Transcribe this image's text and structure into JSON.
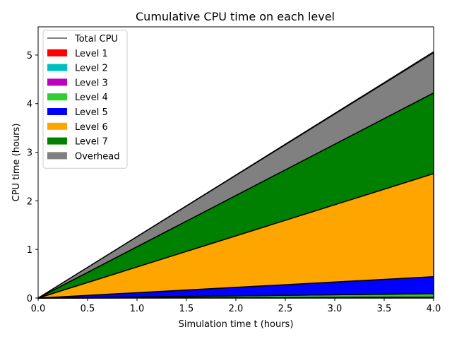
{
  "chart_data": {
    "type": "area",
    "title": "Cumulative CPU time on each level",
    "xlabel": "Simulation time t (hours)",
    "ylabel": "CPU time (hours)",
    "xlim": [
      0.0,
      4.0
    ],
    "ylim": [
      0,
      5.58
    ],
    "x_ticks": [
      0.0,
      0.5,
      1.0,
      1.5,
      2.0,
      2.5,
      3.0,
      3.5,
      4.0
    ],
    "x_tick_labels": [
      "0.0",
      "0.5",
      "1.0",
      "1.5",
      "2.0",
      "2.5",
      "3.0",
      "3.5",
      "4.0"
    ],
    "y_ticks": [
      0,
      1,
      2,
      3,
      4,
      5
    ],
    "y_tick_labels": [
      "0",
      "1",
      "2",
      "3",
      "4",
      "5"
    ],
    "legend_placement": "upper-left",
    "x": [
      0.0,
      4.0
    ],
    "total_line": {
      "name": "Total CPU",
      "color": "#000000",
      "values": [
        0.0,
        5.07
      ]
    },
    "series": [
      {
        "name": "Level 1",
        "color": "#ff0000",
        "values": [
          0.0,
          0.01
        ]
      },
      {
        "name": "Level 2",
        "color": "#00bfbf",
        "values": [
          0.0,
          0.005
        ]
      },
      {
        "name": "Level 3",
        "color": "#bf00bf",
        "values": [
          0.0,
          0.005
        ]
      },
      {
        "name": "Level 4",
        "color": "#32cd32",
        "values": [
          0.0,
          0.07
        ]
      },
      {
        "name": "Level 5",
        "color": "#0000ff",
        "values": [
          0.0,
          0.35
        ]
      },
      {
        "name": "Level 6",
        "color": "#ffa500",
        "values": [
          0.0,
          2.12
        ]
      },
      {
        "name": "Level 7",
        "color": "#008000",
        "values": [
          0.0,
          1.66
        ]
      },
      {
        "name": "Overhead",
        "color": "#808080",
        "values": [
          0.0,
          0.83
        ]
      }
    ]
  }
}
